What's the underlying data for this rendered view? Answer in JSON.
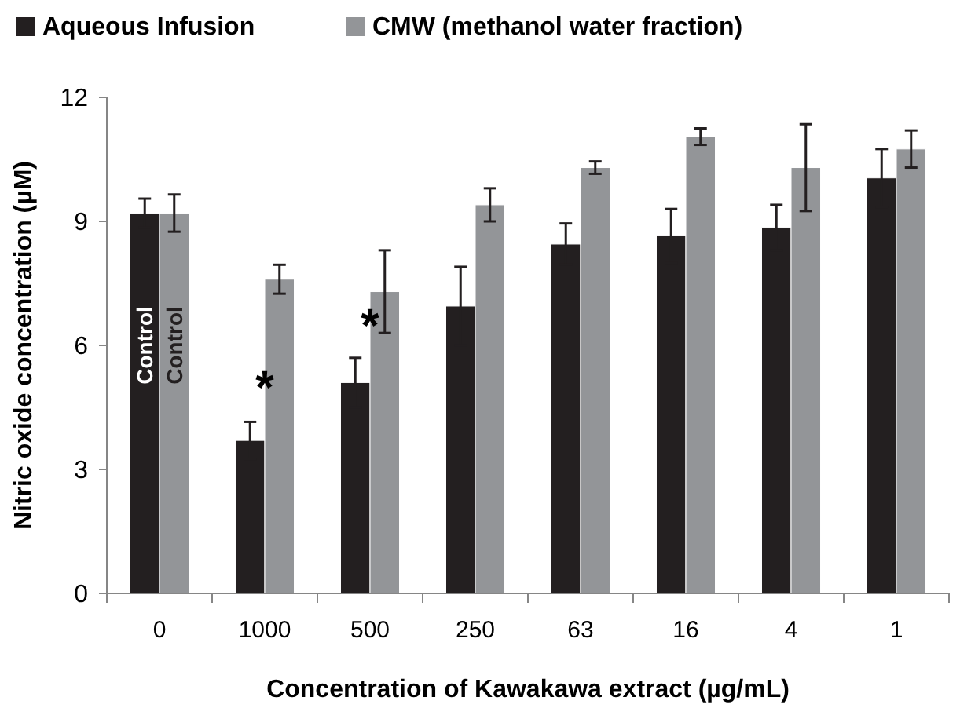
{
  "chart_data": {
    "type": "bar",
    "xlabel": "Concentration of Kawakawa extract (µg/mL)",
    "ylabel": "Nitric oxide concentration  (µM)",
    "categories": [
      "0",
      "1000",
      "500",
      "250",
      "63",
      "16",
      "4",
      "1"
    ],
    "series": [
      {
        "name": "Aqueous Infusion",
        "color": "#231f20",
        "values": [
          9.2,
          3.7,
          5.1,
          6.95,
          8.45,
          8.65,
          8.85,
          10.05
        ],
        "errors": [
          0.35,
          0.45,
          0.6,
          0.95,
          0.5,
          0.65,
          0.55,
          0.7
        ]
      },
      {
        "name": "CMW (methanol water fraction)",
        "color": "#939598",
        "values": [
          9.2,
          7.6,
          7.3,
          9.4,
          10.3,
          11.05,
          10.3,
          10.75
        ],
        "errors": [
          0.45,
          0.35,
          1.0,
          0.4,
          0.15,
          0.2,
          1.05,
          0.45
        ]
      }
    ],
    "annotations": [
      {
        "text": "Control",
        "x": "0",
        "y": 6
      },
      {
        "text": "Control",
        "x": "0",
        "y": 6
      },
      {
        "text": "*",
        "x": "1000",
        "y": 5.4
      },
      {
        "text": "*",
        "x": "500",
        "y": 6.9
      }
    ],
    "ylim": [
      0,
      12
    ],
    "yticks": [
      0,
      3,
      6,
      9,
      12
    ],
    "legend": "top left",
    "grid": false
  }
}
